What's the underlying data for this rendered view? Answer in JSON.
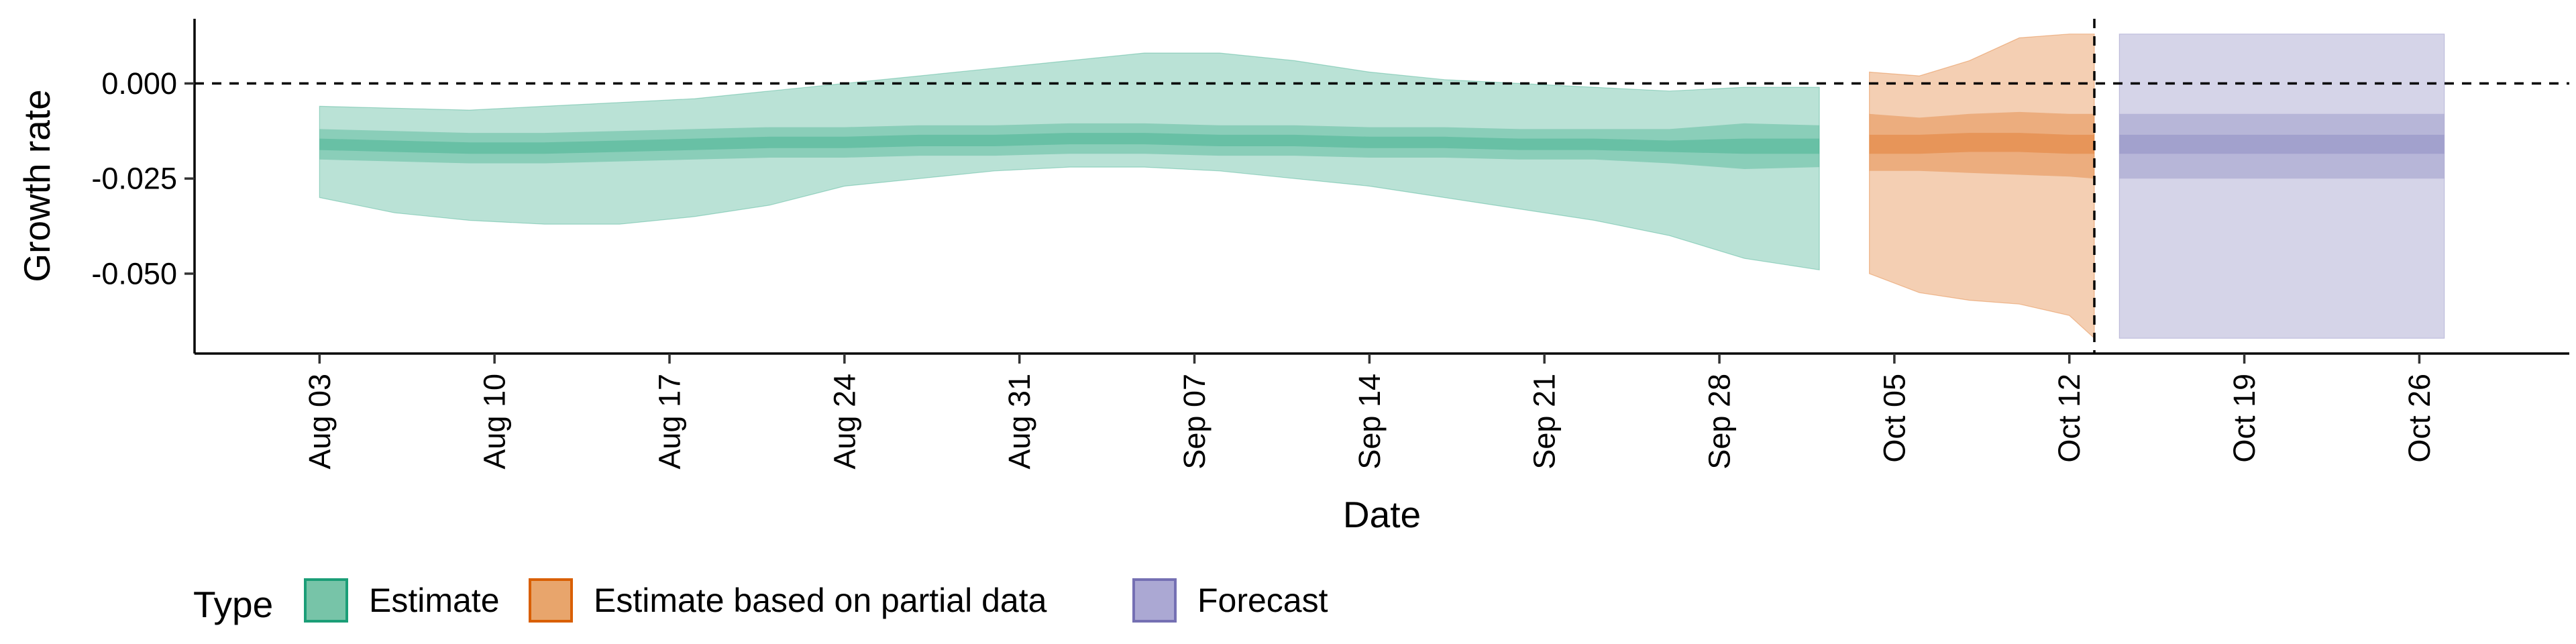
{
  "chart_data": {
    "type": "area",
    "xlabel": "Date",
    "ylabel": "Growth rate",
    "x_ticks": [
      {
        "date": "2020-08-03",
        "label": "Aug 03"
      },
      {
        "date": "2020-08-10",
        "label": "Aug 10"
      },
      {
        "date": "2020-08-17",
        "label": "Aug 17"
      },
      {
        "date": "2020-08-24",
        "label": "Aug 24"
      },
      {
        "date": "2020-08-31",
        "label": "Aug 31"
      },
      {
        "date": "2020-09-07",
        "label": "Sep 07"
      },
      {
        "date": "2020-09-14",
        "label": "Sep 14"
      },
      {
        "date": "2020-09-21",
        "label": "Sep 21"
      },
      {
        "date": "2020-09-28",
        "label": "Sep 28"
      },
      {
        "date": "2020-10-05",
        "label": "Oct 05"
      },
      {
        "date": "2020-10-12",
        "label": "Oct 12"
      },
      {
        "date": "2020-10-19",
        "label": "Oct 19"
      },
      {
        "date": "2020-10-26",
        "label": "Oct 26"
      }
    ],
    "y_ticks": [
      {
        "value": 0.0,
        "label": "0.000"
      },
      {
        "value": -0.025,
        "label": "-0.025"
      },
      {
        "value": -0.05,
        "label": "-0.050"
      }
    ],
    "xlim": [
      "2020-07-29",
      "2020-11-01"
    ],
    "ylim": [
      -0.071,
      0.017
    ],
    "reference_lines": [
      {
        "axis": "y",
        "value": 0.0,
        "style": "dashed"
      },
      {
        "axis": "x",
        "value": "2020-10-13",
        "style": "dashed"
      }
    ],
    "legend": {
      "title": "Type",
      "position": "bottom-left",
      "items": [
        {
          "label": "Estimate",
          "fill": "#77c4a8",
          "stroke": "#1b9e77"
        },
        {
          "label": "Estimate based on partial data",
          "fill": "#e8a56c",
          "stroke": "#d95f02"
        },
        {
          "label": "Forecast",
          "fill": "#aba8d3",
          "stroke": "#7570b3"
        }
      ]
    },
    "series": [
      {
        "name": "Estimate",
        "color": "#1b9e77",
        "x": [
          "2020-08-03",
          "2020-08-06",
          "2020-08-09",
          "2020-08-12",
          "2020-08-15",
          "2020-08-18",
          "2020-08-21",
          "2020-08-24",
          "2020-08-27",
          "2020-08-30",
          "2020-09-02",
          "2020-09-05",
          "2020-09-08",
          "2020-09-11",
          "2020-09-14",
          "2020-09-17",
          "2020-09-20",
          "2020-09-23",
          "2020-09-26",
          "2020-09-29",
          "2020-10-02"
        ],
        "median": [
          -0.016,
          -0.0165,
          -0.017,
          -0.017,
          -0.0165,
          -0.016,
          -0.0155,
          -0.0155,
          -0.015,
          -0.015,
          -0.0145,
          -0.0145,
          -0.015,
          -0.015,
          -0.0155,
          -0.0155,
          -0.016,
          -0.016,
          -0.0165,
          -0.0165,
          -0.0165
        ],
        "lower_20": [
          -0.0145,
          -0.015,
          -0.0155,
          -0.0155,
          -0.015,
          -0.0145,
          -0.014,
          -0.014,
          -0.0135,
          -0.0135,
          -0.013,
          -0.013,
          -0.0135,
          -0.0135,
          -0.014,
          -0.014,
          -0.0145,
          -0.0145,
          -0.015,
          -0.0145,
          -0.0145
        ],
        "upper_20": [
          -0.0175,
          -0.018,
          -0.0185,
          -0.0185,
          -0.018,
          -0.0175,
          -0.017,
          -0.017,
          -0.0165,
          -0.0165,
          -0.016,
          -0.016,
          -0.0165,
          -0.0165,
          -0.017,
          -0.017,
          -0.0175,
          -0.0175,
          -0.018,
          -0.0185,
          -0.0185
        ],
        "lower_50": [
          -0.012,
          -0.0125,
          -0.013,
          -0.013,
          -0.0125,
          -0.012,
          -0.0115,
          -0.0115,
          -0.011,
          -0.011,
          -0.0105,
          -0.0105,
          -0.011,
          -0.011,
          -0.0115,
          -0.0115,
          -0.012,
          -0.012,
          -0.012,
          -0.0105,
          -0.011
        ],
        "upper_50": [
          -0.02,
          -0.0205,
          -0.021,
          -0.021,
          -0.0205,
          -0.02,
          -0.0195,
          -0.0195,
          -0.019,
          -0.019,
          -0.0185,
          -0.0185,
          -0.019,
          -0.019,
          -0.0195,
          -0.0195,
          -0.02,
          -0.02,
          -0.021,
          -0.0225,
          -0.022
        ],
        "lower_90": [
          -0.006,
          -0.0065,
          -0.007,
          -0.006,
          -0.005,
          -0.004,
          -0.002,
          0.0,
          0.002,
          0.004,
          0.006,
          0.008,
          0.008,
          0.006,
          0.003,
          0.001,
          0.0,
          -0.001,
          -0.002,
          -0.001,
          -0.001
        ],
        "upper_90": [
          -0.03,
          -0.034,
          -0.036,
          -0.037,
          -0.037,
          -0.035,
          -0.032,
          -0.027,
          -0.025,
          -0.023,
          -0.022,
          -0.022,
          -0.023,
          -0.025,
          -0.027,
          -0.03,
          -0.033,
          -0.036,
          -0.04,
          -0.046,
          -0.049
        ]
      },
      {
        "name": "Estimate based on partial data",
        "color": "#d95f02",
        "x": [
          "2020-10-04",
          "2020-10-06",
          "2020-10-08",
          "2020-10-10",
          "2020-10-12",
          "2020-10-13"
        ],
        "median": [
          -0.016,
          -0.016,
          -0.0155,
          -0.0155,
          -0.016,
          -0.016
        ],
        "lower_20": [
          -0.0135,
          -0.0135,
          -0.013,
          -0.013,
          -0.0135,
          -0.0135
        ],
        "upper_20": [
          -0.0185,
          -0.0185,
          -0.018,
          -0.018,
          -0.0185,
          -0.0185
        ],
        "lower_50": [
          -0.008,
          -0.009,
          -0.008,
          -0.0075,
          -0.008,
          -0.008
        ],
        "upper_50": [
          -0.023,
          -0.023,
          -0.0235,
          -0.024,
          -0.0245,
          -0.025
        ],
        "lower_90": [
          0.003,
          0.002,
          0.006,
          0.012,
          0.013,
          0.013
        ],
        "upper_90": [
          -0.05,
          -0.055,
          -0.057,
          -0.058,
          -0.061,
          -0.067
        ]
      },
      {
        "name": "Forecast",
        "color": "#7570b3",
        "x": [
          "2020-10-14",
          "2020-10-27"
        ],
        "median": [
          -0.016,
          -0.016
        ],
        "lower_20": [
          -0.0135,
          -0.0135
        ],
        "upper_20": [
          -0.0185,
          -0.0185
        ],
        "lower_50": [
          -0.008,
          -0.008
        ],
        "upper_50": [
          -0.025,
          -0.025
        ],
        "lower_90": [
          0.013,
          0.013
        ],
        "upper_90": [
          -0.067,
          -0.067
        ]
      }
    ]
  }
}
